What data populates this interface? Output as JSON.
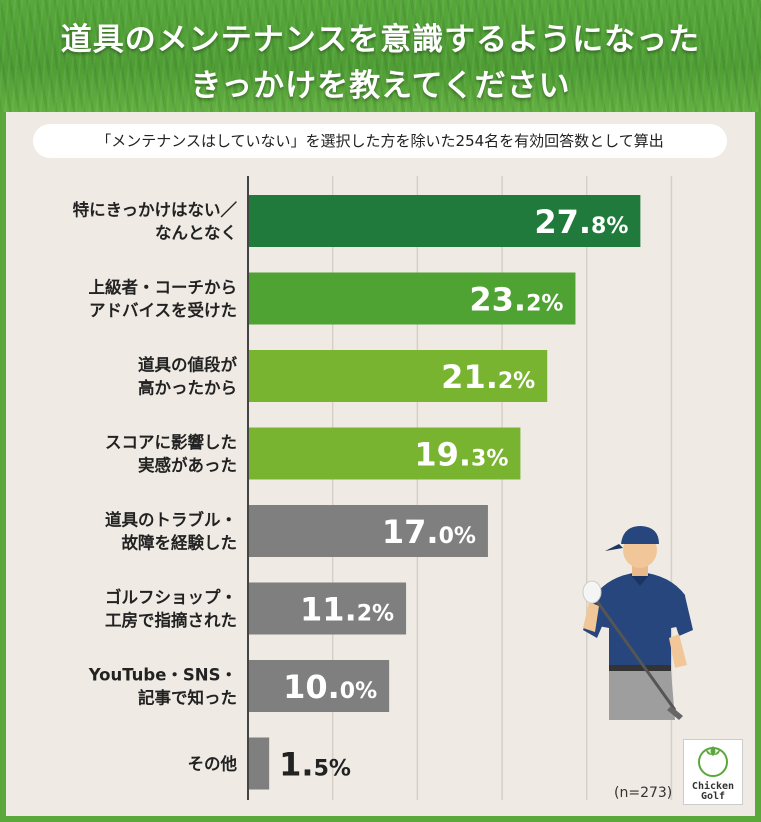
{
  "header": {
    "title_line1": "道具のメンテナンスを意識するようになった",
    "title_line2": "きっかけを教えてください"
  },
  "subtitle": "「メンテナンスはしていない」を選択した方を除いた254名を有効回答数として算出",
  "sample_note": "(n=273)",
  "logo": {
    "line1": "Chicken",
    "line2": "Golf"
  },
  "colors": {
    "dark_green": "#1f7a3c",
    "mid_green": "#4fa332",
    "light_green": "#79b430",
    "gray": "#7f7f7f",
    "background": "#efebe4",
    "frame_green": "#5aa83c"
  },
  "chart_data": {
    "type": "bar",
    "orientation": "horizontal",
    "unit": "%",
    "xlim": [
      0,
      35
    ],
    "grid": true,
    "categories": [
      [
        "特にきっかけはない／",
        "なんとなく"
      ],
      [
        "上級者・コーチから",
        "アドバイスを受けた"
      ],
      [
        "道具の値段が",
        "高かったから"
      ],
      [
        "スコアに影響した",
        "実感があった"
      ],
      [
        "道具のトラブル・",
        "故障を経験した"
      ],
      [
        "ゴルフショップ・",
        "工房で指摘された"
      ],
      [
        "YouTube・SNS・",
        "記事で知った"
      ],
      [
        "その他"
      ]
    ],
    "values": [
      27.8,
      23.2,
      21.2,
      19.3,
      17.0,
      11.2,
      10.0,
      1.5
    ],
    "value_labels": [
      [
        "27.",
        "8%"
      ],
      [
        "23.",
        "2%"
      ],
      [
        "21.",
        "2%"
      ],
      [
        "19.",
        "3%"
      ],
      [
        "17.",
        "0%"
      ],
      [
        "11.",
        "2%"
      ],
      [
        "10.",
        "0%"
      ],
      [
        "1.",
        "5%"
      ]
    ],
    "bar_colors": [
      "#1f7a3c",
      "#4fa332",
      "#79b430",
      "#79b430",
      "#7f7f7f",
      "#7f7f7f",
      "#7f7f7f",
      "#7f7f7f"
    ]
  }
}
